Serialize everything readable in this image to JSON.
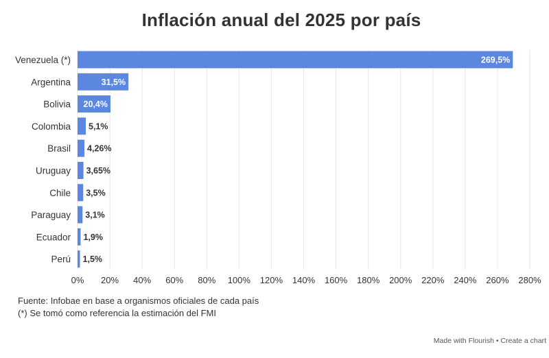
{
  "chart_data": {
    "type": "bar",
    "orientation": "horizontal",
    "title": "Inflación anual del 2025 por país",
    "categories": [
      "Venezuela (*)",
      "Argentina",
      "Bolivia",
      "Colombia",
      "Brasil",
      "Uruguay",
      "Chile",
      "Paraguay",
      "Ecuador",
      "Perú"
    ],
    "values": [
      269.5,
      31.5,
      20.4,
      5.1,
      4.26,
      3.65,
      3.5,
      3.1,
      1.9,
      1.5
    ],
    "value_labels": [
      "269,5%",
      "31,5%",
      "20,4%",
      "5,1%",
      "4,26%",
      "3,65%",
      "3,5%",
      "3,1%",
      "1,9%",
      "1,5%"
    ],
    "xlim": [
      0,
      280
    ],
    "x_ticks": [
      "0%",
      "20%",
      "40%",
      "60%",
      "80%",
      "100%",
      "120%",
      "140%",
      "160%",
      "180%",
      "200%",
      "220%",
      "240%",
      "260%",
      "280%"
    ],
    "xlabel": "",
    "ylabel": "",
    "bar_color": "#5b87e0",
    "grid": true,
    "legend": "none"
  },
  "notes": {
    "source": "Fuente: Infobae en base a organismos oficiales de cada país",
    "footnote": "(*) Se tomó como referencia la estimación del FMI"
  },
  "credit": {
    "made_with": "Made with Flourish",
    "separator": "•",
    "create": "Create a chart"
  }
}
